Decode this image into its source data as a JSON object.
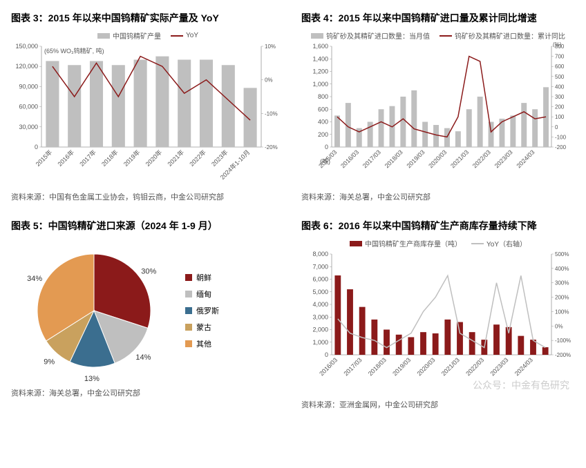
{
  "chart3": {
    "title": "图表 3：2015 年以来中国钨精矿实际产量及 YoY",
    "source": "资料来源：中国有色金属工业协会，钨钼云商，中金公司研究部",
    "type": "bar_line_dual_axis",
    "background_color": "#ffffff",
    "bar_color": "#bfbfbf",
    "line_color": "#8b1a1a",
    "legend_bar": "中国钨精矿产量",
    "legend_line": "YoY",
    "unit_note": "(65% WO₃钨精矿, 吨)",
    "categories": [
      "2015年",
      "2016年",
      "2017年",
      "2018年",
      "2019年",
      "2020年",
      "2021年",
      "2022年",
      "2023年",
      "2024年1-10月"
    ],
    "bar_values": [
      128000,
      122000,
      128000,
      122000,
      130000,
      135000,
      130000,
      130000,
      122000,
      88000
    ],
    "line_values_pct": [
      4,
      -5,
      5,
      -5,
      7,
      4,
      -4,
      0,
      -6,
      -12
    ],
    "ylim_left": [
      0,
      150000
    ],
    "ytick_left": [
      0,
      30000,
      60000,
      90000,
      120000,
      150000
    ],
    "ylim_right": [
      -20,
      10
    ],
    "ytick_right": [
      -20,
      -10,
      0,
      10
    ],
    "title_fontsize": 14,
    "label_fontsize": 9
  },
  "chart4": {
    "title": "图表 4：2015 年以来中国钨精矿进口量及累计同比增速",
    "source": "资料来源：海关总署，中金公司研究部",
    "type": "bar_line_dual_axis",
    "bar_color": "#bfbfbf",
    "line_color": "#8b1a1a",
    "legend_bar": "钨矿砂及其精矿进口数量：当月值",
    "legend_line": "钨矿砂及其精矿进口数量：累计同比",
    "unit_left": "(吨)",
    "unit_right": "(%)",
    "categories": [
      "2015/03",
      "2015/09",
      "2016/03",
      "2016/09",
      "2017/03",
      "2017/09",
      "2018/03",
      "2018/09",
      "2019/03",
      "2019/09",
      "2020/03",
      "2020/09",
      "2021/03",
      "2021/09",
      "2022/03",
      "2022/09",
      "2023/03",
      "2023/09",
      "2024/03",
      "2024/09"
    ],
    "bar_values": [
      500,
      700,
      300,
      400,
      600,
      650,
      800,
      900,
      400,
      350,
      300,
      250,
      600,
      800,
      400,
      450,
      500,
      700,
      600,
      950
    ],
    "line_values_pct": [
      100,
      0,
      -50,
      0,
      50,
      0,
      80,
      -20,
      -50,
      -80,
      -100,
      100,
      700,
      650,
      -50,
      50,
      100,
      150,
      80,
      100
    ],
    "ylim_left": [
      0,
      1600
    ],
    "ytick_left": [
      0,
      200,
      400,
      600,
      800,
      1000,
      1200,
      1400,
      1600
    ],
    "ylim_right": [
      -200,
      800
    ],
    "ytick_right": [
      -200,
      -100,
      0,
      100,
      200,
      300,
      400,
      500,
      600,
      700,
      800
    ]
  },
  "chart5": {
    "title": "图表 5：中国钨精矿进口来源（2024 年 1-9 月）",
    "source": "资料来源：海关总署，中金公司研究部",
    "type": "pie",
    "slices": [
      {
        "label": "朝鲜",
        "value": 30,
        "color": "#8b1a1a"
      },
      {
        "label": "缅甸",
        "value": 14,
        "color": "#bfbfbf"
      },
      {
        "label": "俄罗斯",
        "value": 13,
        "color": "#3b6e8f"
      },
      {
        "label": "蒙古",
        "value": 9,
        "color": "#c9a15e"
      },
      {
        "label": "其他",
        "value": 34,
        "color": "#e39a52"
      }
    ],
    "label_fontsize": 11,
    "pct_labels": [
      "30%",
      "14%",
      "13%",
      "9%",
      "34%"
    ]
  },
  "chart6": {
    "title": "图表 6：2016 年以来中国钨精矿生产商库存量持续下降",
    "source": "资料来源：亚洲金属网，中金公司研究部",
    "type": "bar_line_dual_axis",
    "bar_color": "#8b1a1a",
    "line_color": "#bfbfbf",
    "legend_bar": "中国钨精矿生产商库存量（吨）",
    "legend_line": "YoY（右轴）",
    "categories": [
      "2016/03",
      "2016/09",
      "2017/03",
      "2017/09",
      "2018/03",
      "2018/09",
      "2019/03",
      "2019/09",
      "2020/03",
      "2020/09",
      "2021/03",
      "2021/09",
      "2022/03",
      "2022/09",
      "2023/03",
      "2023/09",
      "2024/03",
      "2024/09"
    ],
    "bar_values": [
      6300,
      5200,
      3800,
      2800,
      2000,
      1600,
      1400,
      1800,
      1700,
      2800,
      2600,
      1800,
      1200,
      2400,
      2200,
      1500,
      1200,
      600
    ],
    "line_values_pct": [
      50,
      -50,
      -80,
      -100,
      -150,
      -100,
      -50,
      100,
      200,
      350,
      -50,
      -100,
      -150,
      300,
      -50,
      350,
      -100,
      -150
    ],
    "ylim_left": [
      0,
      8000
    ],
    "ytick_left": [
      0,
      1000,
      2000,
      3000,
      4000,
      5000,
      6000,
      7000,
      8000
    ],
    "ylim_right": [
      -200,
      500
    ],
    "ytick_right": [
      -200,
      -100,
      0,
      100,
      200,
      300,
      400,
      500
    ]
  },
  "watermark": "公众号：中金有色研究"
}
